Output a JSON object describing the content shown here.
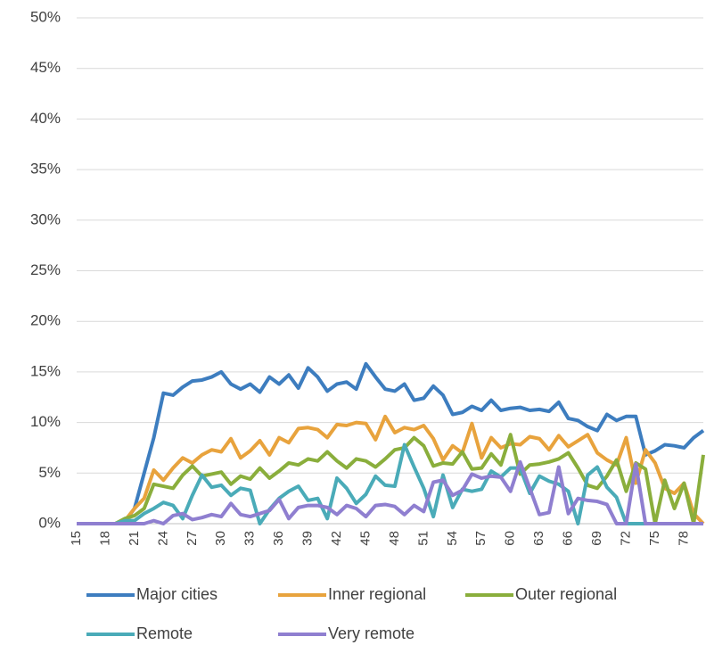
{
  "chart_data": {
    "type": "line",
    "categories": [
      "15",
      null,
      null,
      "18",
      null,
      null,
      "21",
      null,
      null,
      "24",
      null,
      null,
      "27",
      null,
      null,
      "30",
      null,
      null,
      "33",
      null,
      null,
      "36",
      null,
      null,
      "39",
      null,
      null,
      "42",
      null,
      null,
      "45",
      null,
      null,
      "48",
      null,
      null,
      "51",
      null,
      null,
      "54",
      null,
      null,
      "57",
      null,
      null,
      "60",
      null,
      null,
      "63",
      null,
      null,
      "66",
      null,
      null,
      "69",
      null,
      null,
      "72",
      null,
      null,
      "75",
      null,
      null,
      "78",
      null,
      null
    ],
    "series": [
      {
        "name": "Major cities",
        "color": "#3d7dbf",
        "values": [
          0,
          0,
          0,
          0,
          0,
          0.2,
          1.5,
          5,
          8.5,
          12.9,
          12.7,
          13.5,
          14.1,
          14.2,
          14.5,
          15,
          13.8,
          13.3,
          13.8,
          13,
          14.5,
          13.8,
          14.7,
          13.4,
          15.4,
          14.5,
          13.1,
          13.8,
          14,
          13.3,
          15.8,
          14.5,
          13.3,
          13.1,
          13.8,
          12.2,
          12.4,
          13.6,
          12.7,
          10.8,
          11,
          11.6,
          11.2,
          12.2,
          11.2,
          11.4,
          11.5,
          11.2,
          11.3,
          11.1,
          12,
          10.4,
          10.2,
          9.6,
          9.2,
          10.8,
          10.2,
          10.6,
          10.6,
          6.8,
          7.2,
          7.8,
          7.7,
          7.5,
          8.5,
          9.2
        ]
      },
      {
        "name": "Inner regional",
        "color": "#e8a33d",
        "values": [
          0,
          0,
          0,
          0,
          0,
          0.3,
          1.5,
          2.5,
          5.3,
          4.3,
          5.5,
          6.5,
          6,
          6.8,
          7.3,
          7.1,
          8.4,
          6.5,
          7.2,
          8.2,
          6.8,
          8.5,
          8,
          9.4,
          9.5,
          9.3,
          8.5,
          9.8,
          9.7,
          10,
          9.9,
          8.3,
          10.6,
          9,
          9.5,
          9.3,
          9.7,
          8.4,
          6.3,
          7.7,
          7,
          9.9,
          6.5,
          8.5,
          7.5,
          7.9,
          7.8,
          8.6,
          8.4,
          7.3,
          8.7,
          7.6,
          8.2,
          8.8,
          7,
          6.3,
          5.8,
          8.5,
          4,
          7.3,
          6,
          3.5,
          3,
          4,
          1,
          0
        ]
      },
      {
        "name": "Outer regional",
        "color": "#8aae3c",
        "values": [
          0,
          0,
          0,
          0,
          0,
          0.5,
          0.8,
          1.5,
          3.9,
          3.7,
          3.5,
          4.8,
          5.7,
          4.7,
          4.9,
          5.1,
          3.9,
          4.7,
          4.4,
          5.5,
          4.5,
          5.2,
          6,
          5.8,
          6.4,
          6.2,
          7.1,
          6.2,
          5.5,
          6.4,
          6.2,
          5.6,
          6.4,
          7.3,
          7.5,
          8.5,
          7.7,
          5.7,
          6,
          5.9,
          7.1,
          5.4,
          5.5,
          6.9,
          5.8,
          8.8,
          4.9,
          5.8,
          5.9,
          6.1,
          6.4,
          7,
          5.5,
          3.8,
          3.5,
          4.7,
          6.3,
          3.2,
          6,
          5.4,
          0,
          4.3,
          1.5,
          4,
          0,
          6.8
        ]
      },
      {
        "name": "Remote",
        "color": "#4aabb8",
        "values": [
          0,
          0,
          0,
          0,
          0,
          0.3,
          0.3,
          1,
          1.5,
          2.1,
          1.8,
          0.5,
          2.8,
          4.8,
          3.6,
          3.8,
          2.8,
          3.5,
          3.3,
          0,
          1.4,
          2.5,
          3.2,
          3.7,
          2.3,
          2.5,
          0.5,
          4.5,
          3.5,
          2,
          2.9,
          4.7,
          3.8,
          3.7,
          7.8,
          5.6,
          3.5,
          0.7,
          4.8,
          1.6,
          3.4,
          3.2,
          3.4,
          5.2,
          4.6,
          5.5,
          5.5,
          3,
          4.7,
          4.2,
          3.9,
          3.2,
          0,
          4.8,
          5.6,
          3.6,
          2.6,
          0,
          0,
          0,
          0,
          0,
          0,
          0,
          0,
          0
        ]
      },
      {
        "name": "Very remote",
        "color": "#8f7fd0",
        "values": [
          0,
          0,
          0,
          0,
          0,
          0,
          0,
          0,
          0.3,
          0,
          0.8,
          1,
          0.4,
          0.6,
          0.9,
          0.7,
          2,
          0.9,
          0.7,
          1,
          1.3,
          2.4,
          0.5,
          1.6,
          1.8,
          1.8,
          1.6,
          0.9,
          1.8,
          1.5,
          0.7,
          1.8,
          1.9,
          1.7,
          0.9,
          1.8,
          1.2,
          4.1,
          4.3,
          2.8,
          3.3,
          4.9,
          4.5,
          4.7,
          4.6,
          3.2,
          6.1,
          3.5,
          0.9,
          1.1,
          5.6,
          1,
          2.5,
          2.3,
          2.2,
          1.9,
          0,
          0,
          5.9,
          0,
          0,
          0,
          0,
          0,
          0,
          0
        ]
      }
    ],
    "ylim": [
      0,
      50
    ],
    "yticks": [
      {
        "value": 0,
        "label": "0%"
      },
      {
        "value": 5,
        "label": "5%"
      },
      {
        "value": 10,
        "label": "10%"
      },
      {
        "value": 15,
        "label": "15%"
      },
      {
        "value": 20,
        "label": "20%"
      },
      {
        "value": 25,
        "label": "25%"
      },
      {
        "value": 30,
        "label": "30%"
      },
      {
        "value": 35,
        "label": "35%"
      },
      {
        "value": 40,
        "label": "40%"
      },
      {
        "value": 45,
        "label": "45%"
      },
      {
        "value": 50,
        "label": "50%"
      }
    ],
    "grid": true,
    "legend": "bottom"
  }
}
